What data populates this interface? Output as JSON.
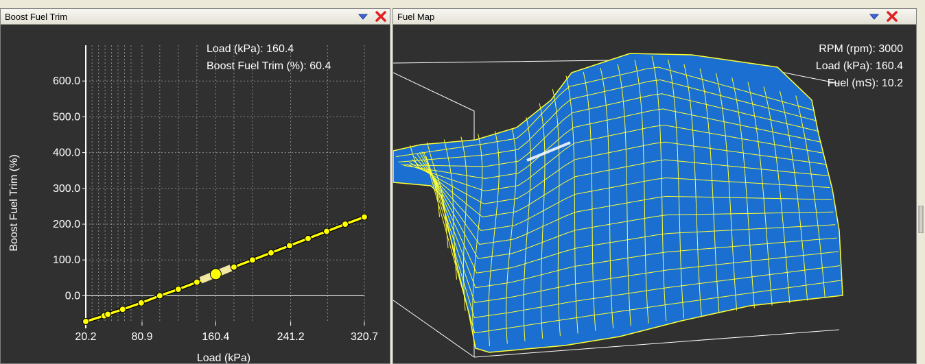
{
  "left_panel": {
    "title": "Boost Fuel Trim",
    "readout": {
      "load_line": "Load (kPa): 160.4",
      "trim_line": "Boost Fuel Trim (%): 60.4"
    },
    "icons": {
      "minimize": "chevron-down-icon",
      "close": "close-icon"
    }
  },
  "right_panel": {
    "title": "Fuel Map",
    "readout": {
      "rpm_line": "RPM (rpm): 3000",
      "load_line": "Load (kPa): 160.4",
      "fuel_line": "Fuel (mS): 10.2"
    },
    "icons": {
      "minimize": "chevron-down-icon",
      "close": "close-icon"
    }
  },
  "colors": {
    "panel_bg": "#303030",
    "curve": "#ffff00",
    "surface": "#1a6fd1",
    "mesh": "#ffff33",
    "close": "#e02020",
    "minimize": "#3060d0"
  },
  "chart_data": {
    "type": "line",
    "xlabel": "Load (kPa)",
    "ylabel": "Boost Fuel Trim (%)",
    "xlim": [
      20.2,
      320.7
    ],
    "ylim": [
      -72,
      700
    ],
    "x_tick_labels": [
      "20.2",
      "80.9",
      "160.4",
      "241.2",
      "320.7"
    ],
    "x_ticks": [
      20.2,
      80.9,
      160.4,
      241.2,
      320.7
    ],
    "y_tick_labels": [
      "0.0",
      "100.0",
      "200.0",
      "300.0",
      "400.0",
      "500.0",
      "600.0"
    ],
    "y_ticks": [
      0,
      100,
      200,
      300,
      400,
      500,
      600
    ],
    "x_gridlines": [
      27,
      34,
      41,
      48,
      55,
      62,
      69,
      80.9,
      100,
      120,
      140,
      160.4,
      180,
      200,
      241.2,
      281,
      320.7
    ],
    "x": [
      20.2,
      40,
      44,
      60,
      80,
      100,
      120,
      140,
      160.4,
      180,
      200,
      220,
      240,
      260,
      280,
      300,
      320.7
    ],
    "y": [
      -72,
      -56,
      -52,
      -38,
      -20,
      0,
      18,
      38,
      60.4,
      80,
      100,
      120,
      140,
      160,
      180,
      200,
      220
    ],
    "highlight": {
      "x": 160.4,
      "y": 60.4
    }
  }
}
